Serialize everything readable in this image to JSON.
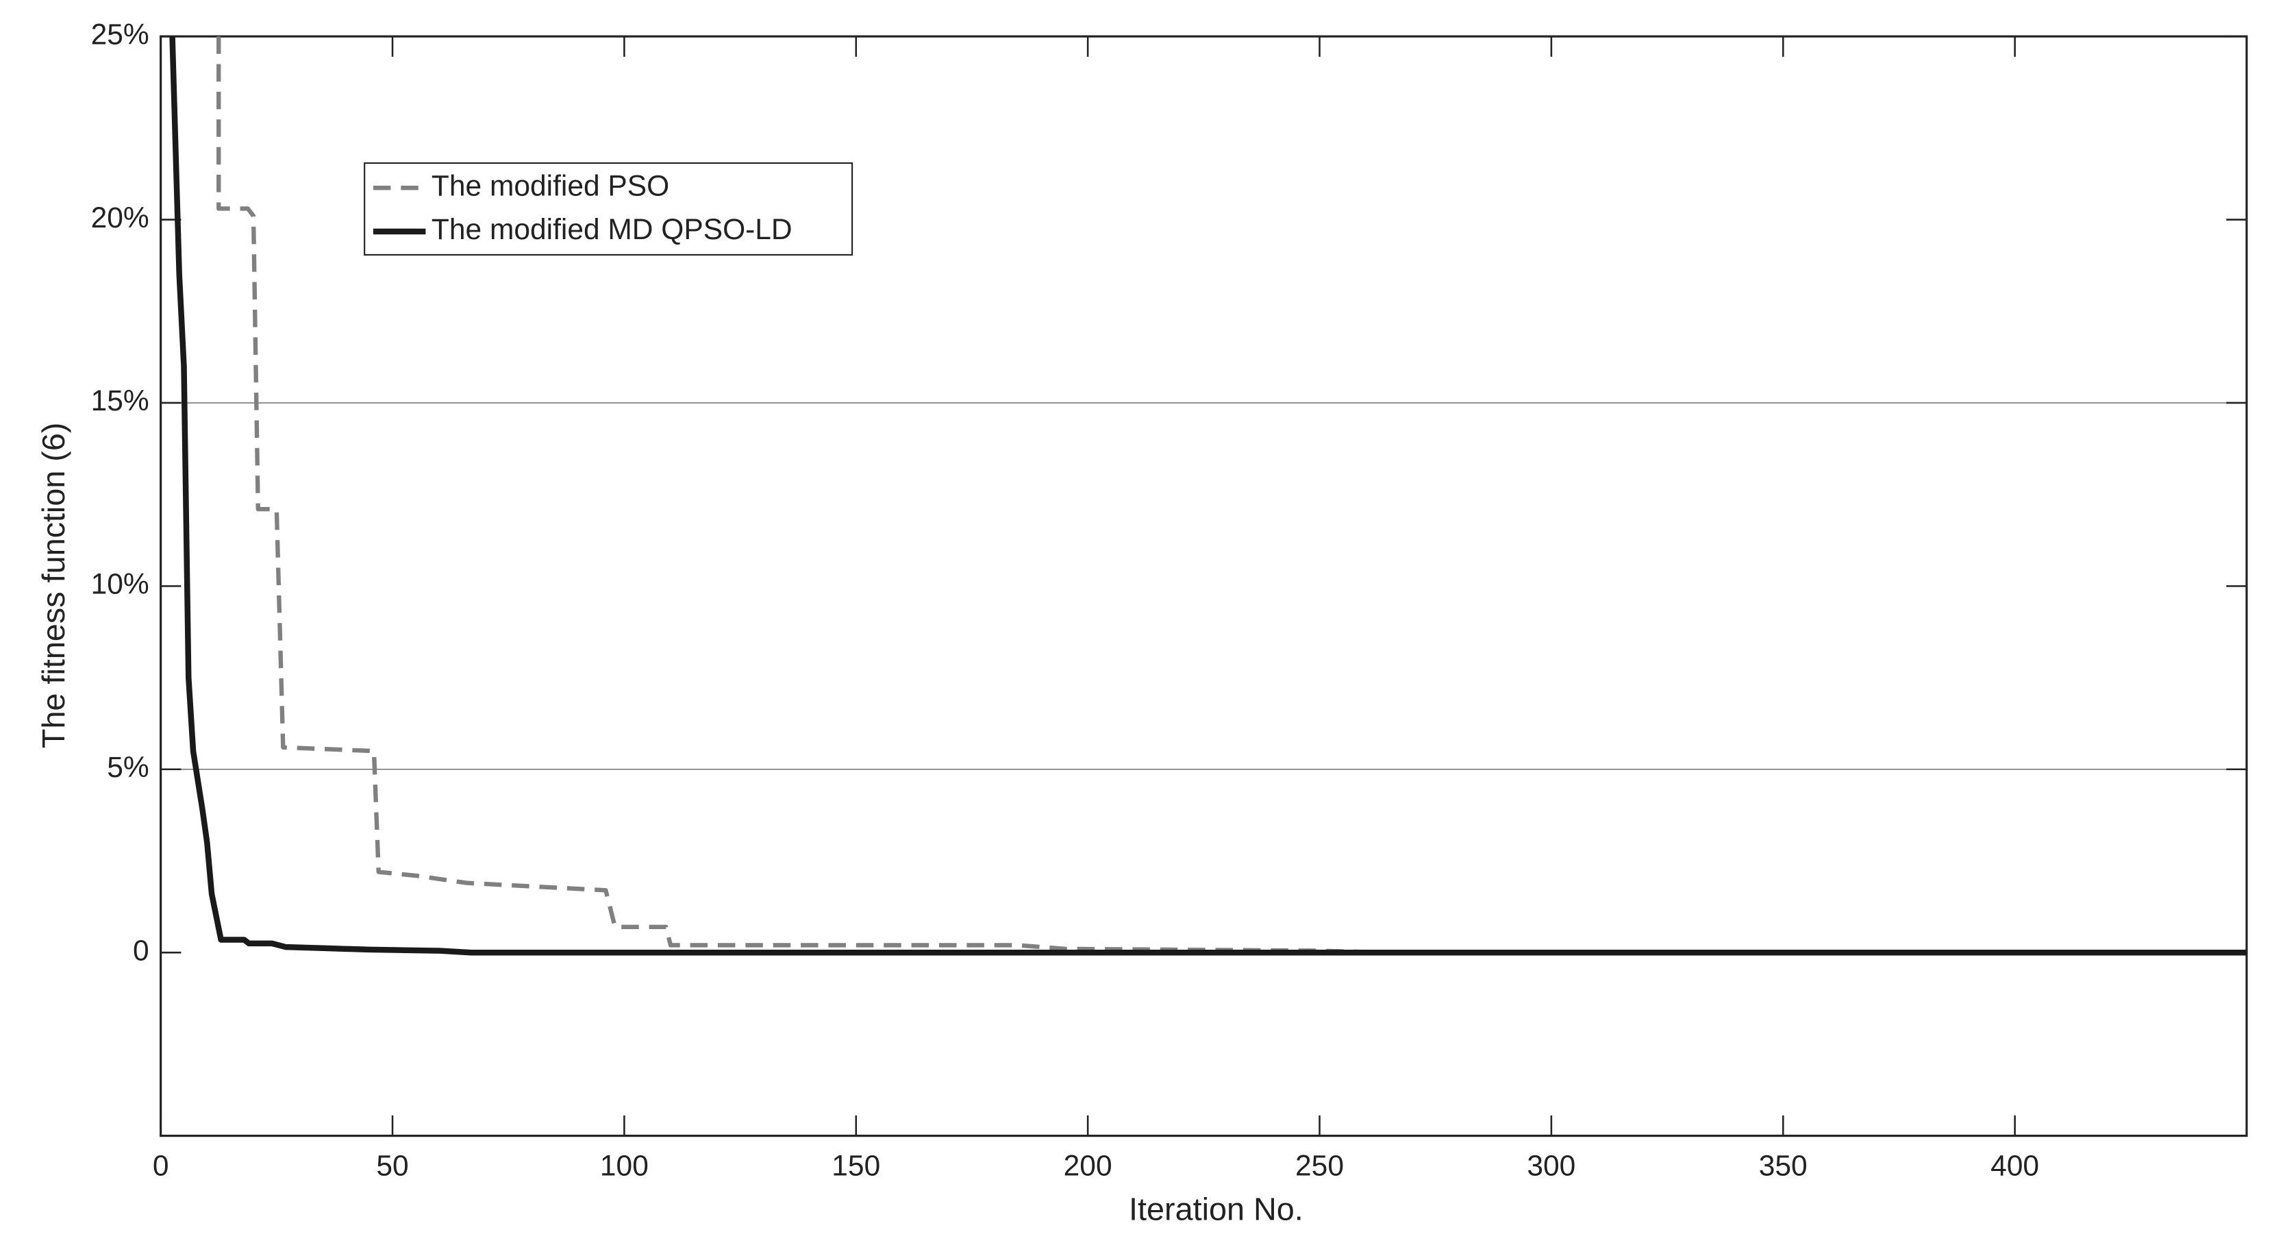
{
  "chart_data": {
    "type": "line",
    "xlabel": "Iteration No.",
    "ylabel": "The fitness function (6)",
    "xlim": [
      0,
      450
    ],
    "ylim": [
      -5,
      25
    ],
    "xticks": [
      0,
      50,
      100,
      150,
      200,
      250,
      300,
      350,
      400
    ],
    "yticks": [
      0,
      {
        "value": 5,
        "label": "5%"
      },
      {
        "value": 10,
        "label": "10%"
      },
      {
        "value": 15,
        "label": "15%"
      },
      {
        "value": 20,
        "label": "20%"
      },
      {
        "value": 25,
        "label": "25%"
      }
    ],
    "ygrid": [
      5,
      15
    ],
    "legend": "upper left",
    "series": [
      {
        "name": "The modified PSO",
        "color": "#808080",
        "dash": true,
        "x": [
          12.5,
          12.5,
          18.8,
          20,
          21,
          25,
          26.4,
          46,
          47,
          55,
          66,
          96,
          98,
          109,
          110,
          185,
          195,
          250,
          265,
          450
        ],
        "values": [
          25,
          20.3,
          20.3,
          20.1,
          12.1,
          12.1,
          5.6,
          5.5,
          2.2,
          2.1,
          1.9,
          1.7,
          0.7,
          0.7,
          0.2,
          0.2,
          0.1,
          0.05,
          0,
          0
        ]
      },
      {
        "name": "The modified MD QPSO-LD",
        "color": "#1a1a1a",
        "dash": false,
        "x": [
          2.5,
          4,
          5,
          6,
          7,
          9,
          10,
          11,
          13,
          18,
          19,
          24,
          27,
          35,
          45,
          60,
          67,
          450
        ],
        "values": [
          25,
          18.5,
          16,
          7.5,
          5.5,
          3.9,
          3,
          1.6,
          0.35,
          0.35,
          0.25,
          0.25,
          0.15,
          0.12,
          0.08,
          0.05,
          0,
          0
        ]
      }
    ]
  }
}
